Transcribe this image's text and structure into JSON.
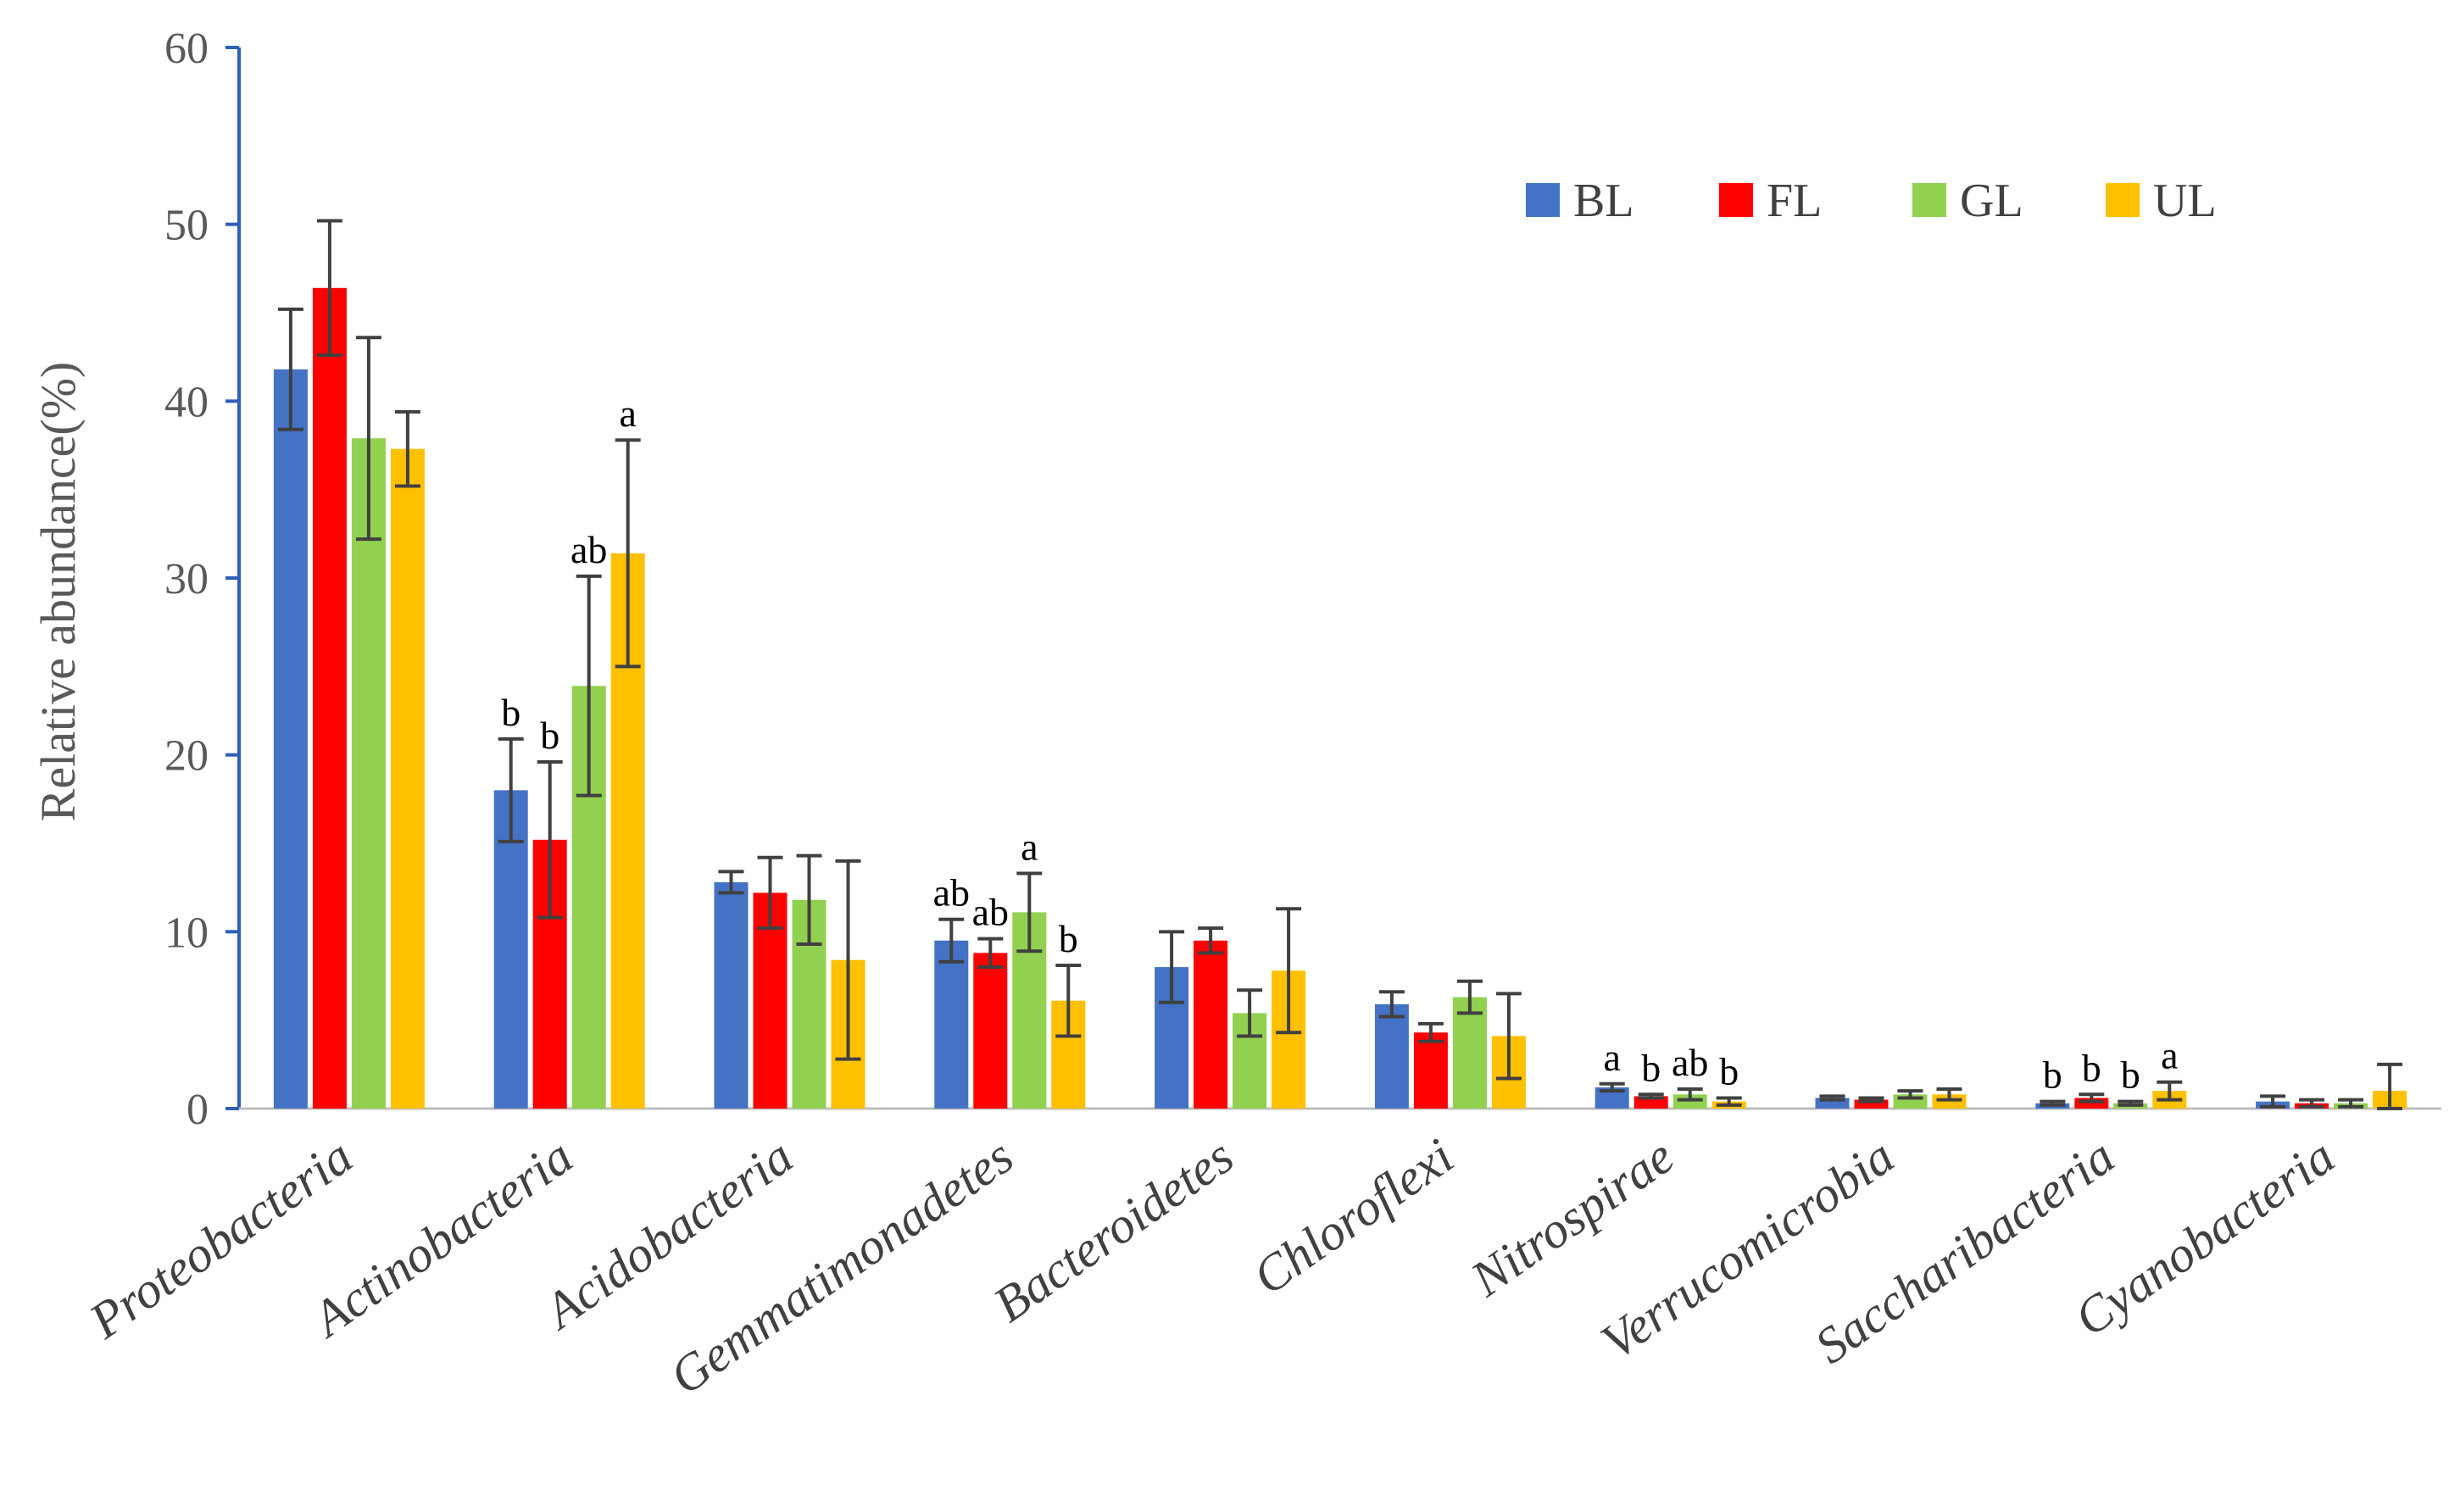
{
  "chart_data": {
    "type": "bar",
    "title": "",
    "xlabel": "",
    "ylabel": "Relative abundance(%)",
    "ylim": [
      0,
      60
    ],
    "yticks": [
      0,
      10,
      20,
      30,
      40,
      50,
      60
    ],
    "grid": false,
    "legend_position": "top-right",
    "categories": [
      "Proteobacteria",
      "Actinobacteria",
      "Acidobacteria",
      "Gemmatimonadetes",
      "Bacteroidetes",
      "Chloroflexi",
      "Nitrospirae",
      "Verrucomicrobia",
      "Saccharibacteria",
      "Cyanobacteria"
    ],
    "series": [
      {
        "name": "BL",
        "color": "#4472C4",
        "values": [
          41.8,
          18.0,
          12.8,
          9.5,
          8.0,
          5.9,
          1.2,
          0.6,
          0.3,
          0.4
        ],
        "errors": [
          3.4,
          2.9,
          0.6,
          1.2,
          2.0,
          0.7,
          0.2,
          0.1,
          0.1,
          0.3
        ],
        "labels": [
          "",
          "b",
          "",
          "ab",
          "",
          "",
          "a",
          "",
          "b",
          ""
        ]
      },
      {
        "name": "FL",
        "color": "#FF0000",
        "values": [
          46.4,
          15.2,
          12.2,
          8.8,
          9.5,
          4.3,
          0.7,
          0.5,
          0.6,
          0.3
        ],
        "errors": [
          3.8,
          4.4,
          2.0,
          0.8,
          0.7,
          0.5,
          0.1,
          0.1,
          0.2,
          0.2
        ],
        "labels": [
          "",
          "b",
          "",
          "ab",
          "",
          "",
          "b",
          "",
          "b",
          ""
        ]
      },
      {
        "name": "GL",
        "color": "#92D050",
        "values": [
          37.9,
          23.9,
          11.8,
          11.1,
          5.4,
          6.3,
          0.8,
          0.8,
          0.3,
          0.3
        ],
        "errors": [
          5.7,
          6.2,
          2.5,
          2.2,
          1.3,
          0.9,
          0.3,
          0.2,
          0.1,
          0.2
        ],
        "labels": [
          "",
          "ab",
          "",
          "a",
          "",
          "",
          "ab",
          "",
          "b",
          ""
        ]
      },
      {
        "name": "UL",
        "color": "#FFC000",
        "values": [
          37.3,
          31.4,
          8.4,
          6.1,
          7.8,
          4.1,
          0.4,
          0.8,
          1.0,
          1.0
        ],
        "errors": [
          2.1,
          6.4,
          5.6,
          2.0,
          3.5,
          2.4,
          0.2,
          0.3,
          0.5,
          1.5
        ],
        "labels": [
          "",
          "a",
          "",
          "b",
          "",
          "",
          "b",
          "",
          "a",
          ""
        ]
      }
    ]
  }
}
